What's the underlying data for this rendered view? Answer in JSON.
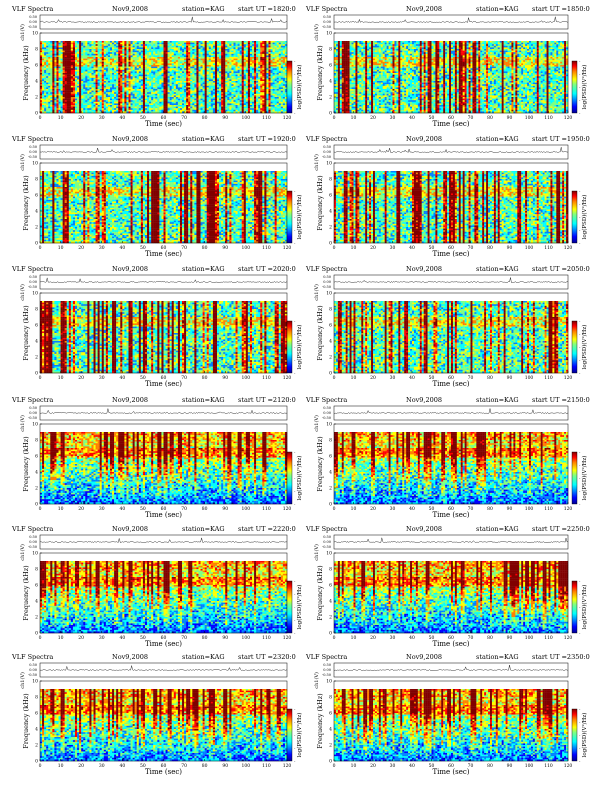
{
  "page": {
    "title_prefix": "VLF Spectra",
    "date": "Nov9,2008",
    "station": "station=KAG",
    "start_prefix": "start UT ="
  },
  "labels": {
    "ch_label": "ch1(V)",
    "ylabel": "Frequency (kHz)",
    "xlabel": "Time (sec)",
    "cbar_label": "log(PSD)(V²/Hz)",
    "ch_ticks": [
      "0.50",
      "0.00",
      "-0.50"
    ]
  },
  "chart_data": [
    {
      "type": "heatmap",
      "start_ut": "1820:0",
      "xlim": [
        0,
        120
      ],
      "ylim": [
        0,
        10
      ],
      "noise_floor_ylim": [
        0,
        1
      ]
    },
    {
      "type": "heatmap",
      "start_ut": "1850:0",
      "xlim": [
        0,
        120
      ],
      "ylim": [
        0,
        10
      ]
    },
    {
      "type": "heatmap",
      "start_ut": "1920:0",
      "xlim": [
        0,
        120
      ],
      "ylim": [
        0,
        10
      ]
    },
    {
      "type": "heatmap",
      "start_ut": "1950:0",
      "xlim": [
        0,
        120
      ],
      "ylim": [
        0,
        10
      ]
    },
    {
      "type": "heatmap",
      "start_ut": "2020:0",
      "xlim": [
        0,
        120
      ],
      "ylim": [
        0,
        10
      ]
    },
    {
      "type": "heatmap",
      "start_ut": "2050:0",
      "xlim": [
        0,
        120
      ],
      "ylim": [
        0,
        10
      ]
    },
    {
      "type": "heatmap",
      "start_ut": "2120:0",
      "xlim": [
        0,
        120
      ],
      "ylim": [
        0,
        10
      ]
    },
    {
      "type": "heatmap",
      "start_ut": "2150:0",
      "xlim": [
        0,
        120
      ],
      "ylim": [
        0,
        10
      ]
    },
    {
      "type": "heatmap",
      "start_ut": "2220:0",
      "xlim": [
        0,
        120
      ],
      "ylim": [
        0,
        10
      ]
    },
    {
      "type": "heatmap",
      "start_ut": "2250:0",
      "xlim": [
        0,
        120
      ],
      "ylim": [
        0,
        10
      ]
    },
    {
      "type": "heatmap",
      "start_ut": "2320:0",
      "xlim": [
        0,
        120
      ],
      "ylim": [
        0,
        10
      ]
    },
    {
      "type": "heatmap",
      "start_ut": "2350:0",
      "xlim": [
        0,
        120
      ],
      "ylim": [
        0,
        10
      ]
    }
  ],
  "axes": {
    "x_ticks": [
      "0",
      "10",
      "20",
      "30",
      "40",
      "50",
      "60",
      "70",
      "80",
      "90",
      "100",
      "110",
      "120"
    ],
    "y_ticks": [
      "0",
      "2",
      "4",
      "6",
      "8",
      "10"
    ],
    "cbar_ticks": [
      "-",
      "-",
      "-",
      "-",
      "-"
    ]
  },
  "colors": {
    "colormap": [
      "#00008f",
      "#0000ff",
      "#0080ff",
      "#00ffff",
      "#80ff80",
      "#ffff00",
      "#ff8000",
      "#ff0000",
      "#800000"
    ]
  }
}
